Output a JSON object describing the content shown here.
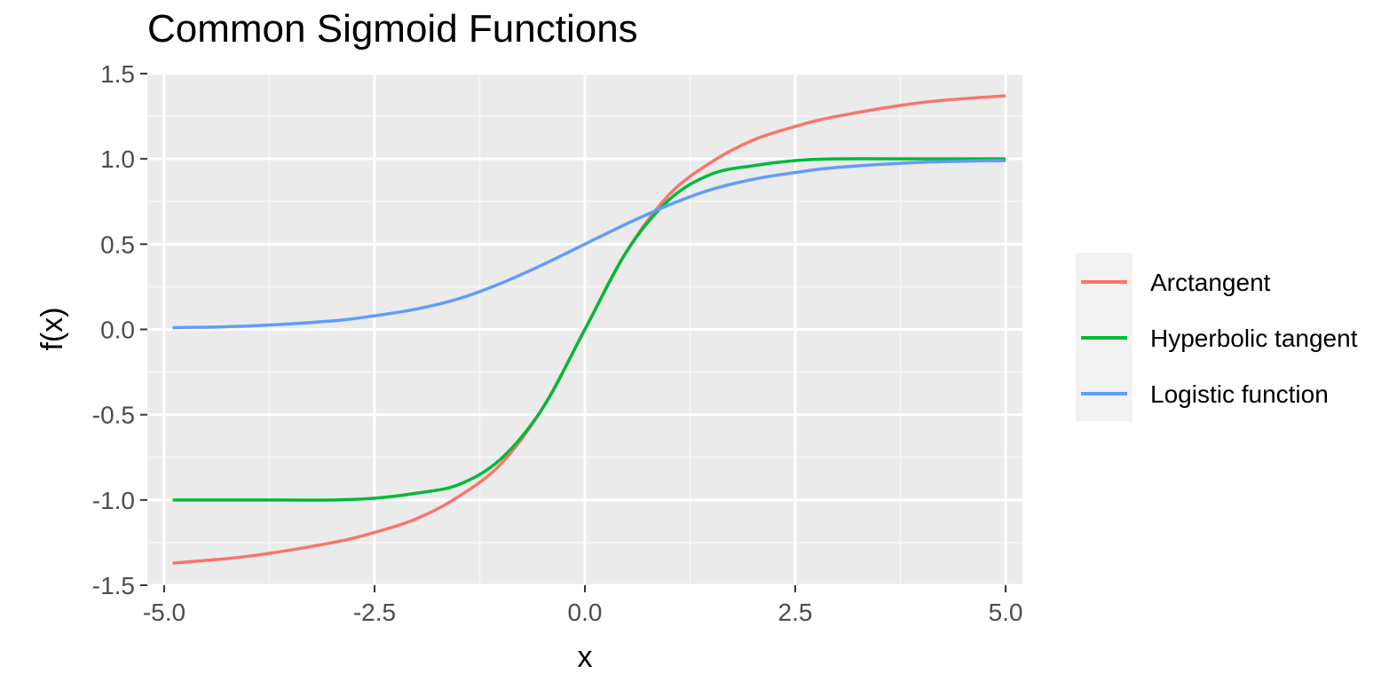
{
  "chart_data": {
    "type": "line",
    "title": "Common Sigmoid Functions",
    "xlabel": "x",
    "ylabel": "f(x)",
    "xlim": [
      -5.2,
      5.2
    ],
    "ylim": [
      -1.5,
      1.5
    ],
    "x_ticks": [
      -5.0,
      -2.5,
      0.0,
      2.5,
      5.0
    ],
    "x_tick_labels": [
      "-5.0",
      "-2.5",
      "0.0",
      "2.5",
      "5.0"
    ],
    "y_ticks": [
      -1.5,
      -1.0,
      -0.5,
      0.0,
      0.5,
      1.0,
      1.5
    ],
    "y_tick_labels": [
      "-1.5",
      "-1.0",
      "-0.5",
      "0.0",
      "0.5",
      "1.0",
      "1.5"
    ],
    "grid": true,
    "legend_position": "right",
    "x": [
      -4.9,
      -4.0,
      -3.0,
      -2.5,
      -2.0,
      -1.5,
      -1.0,
      -0.5,
      0.0,
      0.5,
      1.0,
      1.5,
      2.0,
      2.5,
      3.0,
      4.0,
      5.0
    ],
    "series": [
      {
        "name": "Arctangent",
        "color": "#F8766D",
        "values": [
          -1.37,
          -1.33,
          -1.25,
          -1.19,
          -1.11,
          -0.98,
          -0.79,
          -0.46,
          0.0,
          0.46,
          0.79,
          0.98,
          1.11,
          1.19,
          1.25,
          1.33,
          1.37
        ]
      },
      {
        "name": "Hyperbolic tangent",
        "color": "#00BA38",
        "values": [
          -1.0,
          -1.0,
          -1.0,
          -0.99,
          -0.96,
          -0.91,
          -0.76,
          -0.46,
          0.0,
          0.46,
          0.76,
          0.91,
          0.96,
          0.99,
          1.0,
          1.0,
          1.0
        ]
      },
      {
        "name": "Logistic function",
        "color": "#619CFF",
        "values": [
          0.01,
          0.02,
          0.05,
          0.08,
          0.12,
          0.18,
          0.27,
          0.38,
          0.5,
          0.62,
          0.73,
          0.82,
          0.88,
          0.92,
          0.95,
          0.98,
          0.99
        ]
      }
    ]
  }
}
